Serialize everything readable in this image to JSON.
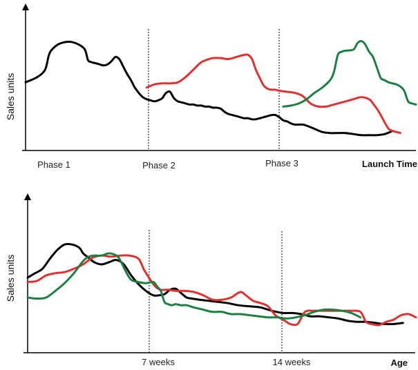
{
  "chart_data": [
    {
      "type": "line",
      "ylabel": "Sales units",
      "xlabel": "Launch Time",
      "phase_labels": [
        "Phase 1",
        "Phase 2",
        "Phase 3"
      ],
      "x_units": "launch time (0-100, relative)",
      "xlim": [
        0,
        100
      ],
      "ylim": [
        0,
        100
      ],
      "grid": false,
      "vertical_markers_x": [
        31.5,
        64.5
      ],
      "series": [
        {
          "color": "#000000",
          "x": [
            0,
            3,
            5,
            6,
            7,
            9,
            12,
            15,
            16,
            17,
            18,
            19,
            20,
            21,
            22,
            23,
            24,
            25,
            26,
            27,
            28,
            29,
            30,
            31,
            32,
            33,
            34,
            35,
            36,
            37,
            38,
            39,
            40,
            41,
            42,
            43,
            44,
            45,
            46,
            47,
            48,
            49,
            50,
            51,
            52,
            53,
            54,
            55,
            56,
            57,
            58,
            59,
            60,
            61,
            62,
            63,
            64,
            65,
            66,
            67,
            68,
            69,
            70,
            71,
            72,
            74,
            76,
            78,
            80,
            82,
            84,
            86,
            88,
            90,
            92,
            94
          ],
          "y": [
            58,
            63,
            70,
            84,
            90,
            95,
            96,
            90,
            79,
            77,
            76,
            75,
            74,
            75,
            78,
            82,
            80,
            73,
            66,
            60,
            53,
            48,
            44,
            42,
            41,
            40,
            41,
            43,
            48,
            49,
            43,
            40,
            39,
            38,
            37,
            37,
            36,
            36,
            35,
            35,
            34,
            34,
            33,
            30,
            28,
            27,
            26,
            25,
            24,
            24,
            23,
            23,
            24,
            25,
            26,
            27,
            27,
            25,
            22,
            21,
            19,
            18,
            18,
            18,
            17,
            14,
            11,
            10,
            10,
            10,
            9,
            8,
            8,
            8,
            9,
            12
          ]
        },
        {
          "color": "#e03030",
          "x": [
            31,
            33,
            35,
            37,
            39,
            41,
            43,
            45,
            47,
            48,
            50,
            52,
            54,
            56,
            57,
            58,
            59,
            60,
            61,
            62,
            63,
            64,
            65,
            67,
            69,
            71,
            73,
            75,
            77,
            78,
            80,
            82,
            84,
            86,
            88,
            89,
            90,
            91,
            92,
            93,
            94,
            95,
            96
          ],
          "y": [
            53,
            56,
            57,
            57,
            58,
            63,
            70,
            77,
            80,
            81,
            81,
            80,
            82,
            84,
            84,
            80,
            70,
            62,
            55,
            52,
            51,
            51,
            50,
            49,
            48,
            45,
            38,
            35,
            35,
            36,
            38,
            40,
            42,
            44,
            42,
            38,
            33,
            27,
            20,
            14,
            12,
            11,
            10
          ]
        },
        {
          "color": "#1a8040",
          "x": [
            66,
            68,
            70,
            72,
            74,
            76,
            78,
            79,
            80,
            81,
            82,
            84,
            85,
            86,
            87,
            88,
            89,
            90,
            91,
            92,
            93,
            94,
            95,
            96,
            97,
            98,
            99,
            100
          ],
          "y": [
            35,
            36,
            38,
            42,
            48,
            53,
            60,
            68,
            84,
            87,
            88,
            89,
            95,
            97,
            94,
            87,
            82,
            72,
            62,
            60,
            58,
            57,
            56,
            54,
            50,
            40,
            38,
            37
          ]
        }
      ]
    },
    {
      "type": "line",
      "ylabel": "Sales units",
      "xlabel": "Age",
      "tick_labels": [
        "7 weeks",
        "14 weeks"
      ],
      "xlim": [
        0,
        21
      ],
      "ylim": [
        0,
        100
      ],
      "x_units": "weeks",
      "grid": false,
      "vertical_markers_x": [
        7,
        14
      ],
      "series": [
        {
          "color": "#000000",
          "x": [
            0,
            0.4,
            0.8,
            1.2,
            1.6,
            2.0,
            2.4,
            2.8,
            3.0,
            3.3,
            3.6,
            4.0,
            4.4,
            4.8,
            5.2,
            5.6,
            6.0,
            6.4,
            6.8,
            7.1,
            7.4,
            7.7,
            8.0,
            8.3,
            8.6,
            8.9,
            9.3,
            9.8,
            10.3,
            10.8,
            11.4,
            12.0,
            12.6,
            13.2,
            13.8,
            14.3,
            14.8,
            15.3,
            15.8,
            16.3,
            16.8,
            17.3,
            17.8,
            18.3,
            18.8,
            19.3,
            19.8,
            20.3
          ],
          "y": [
            58,
            62,
            66,
            75,
            83,
            88,
            88,
            85,
            80,
            76,
            72,
            70,
            72,
            74,
            70,
            60,
            52,
            46,
            42,
            42,
            43,
            47,
            48,
            44,
            40,
            39,
            38,
            37,
            36,
            35,
            33,
            32,
            31,
            28,
            26,
            26,
            25,
            23,
            23,
            22,
            21,
            19,
            18,
            18,
            17,
            16,
            16,
            17
          ]
        },
        {
          "color": "#e03030",
          "x": [
            0,
            0.5,
            1.0,
            1.5,
            2.0,
            2.5,
            3.0,
            3.5,
            4.0,
            4.5,
            5.0,
            5.5,
            6.0,
            6.3,
            6.6,
            6.9,
            7.2,
            7.6,
            8.0,
            8.5,
            9.0,
            9.5,
            10.0,
            10.5,
            11.0,
            11.5,
            11.8,
            12.2,
            12.6,
            13.0,
            13.4,
            13.8,
            14.0,
            14.2,
            14.6,
            15.0,
            15.5,
            16.0,
            16.5,
            17.0,
            17.5,
            18.0,
            18.3,
            18.6,
            19.0,
            19.4,
            19.8,
            20.2,
            20.6,
            21.0
          ],
          "y": [
            54,
            55,
            60,
            62,
            63,
            66,
            70,
            76,
            78,
            77,
            78,
            78,
            75,
            65,
            57,
            50,
            47,
            47,
            46,
            46,
            45,
            42,
            38,
            38,
            40,
            45,
            42,
            37,
            35,
            32,
            24,
            20,
            18,
            16,
            16,
            27,
            28,
            28,
            28,
            28,
            28,
            27,
            18,
            16,
            15,
            18,
            20,
            24,
            25,
            22
          ]
        },
        {
          "color": "#1a8040",
          "x": [
            0,
            0.5,
            1.0,
            1.5,
            2.0,
            2.5,
            3.0,
            3.3,
            3.6,
            4.0,
            4.4,
            4.8,
            5.0,
            5.3,
            5.6,
            6.0,
            6.4,
            6.8,
            7.0,
            7.2,
            7.4,
            7.6,
            7.8,
            8.0,
            8.3,
            8.6,
            9.0,
            9.5,
            10.0,
            10.5,
            11.0,
            11.5,
            12.0,
            12.5,
            13.0,
            13.5,
            14.0,
            14.5,
            15.0,
            15.5,
            16.0,
            16.5,
            17.0,
            17.5,
            18.0
          ],
          "y": [
            40,
            39,
            40,
            46,
            53,
            62,
            73,
            77,
            78,
            78,
            80,
            78,
            74,
            64,
            56,
            54,
            53,
            54,
            50,
            46,
            36,
            34,
            33,
            34,
            33,
            33,
            31,
            29,
            27,
            27,
            25,
            25,
            24,
            23,
            22,
            22,
            21,
            22,
            24,
            27,
            29,
            29,
            28,
            26,
            22
          ]
        }
      ]
    }
  ]
}
